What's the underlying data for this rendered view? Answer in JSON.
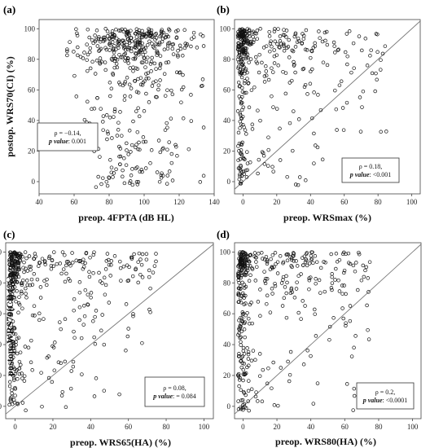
{
  "chart_data": [
    {
      "type": "scatter",
      "panel": "(a)",
      "xlabel": "preop. 4FPTA (dB HL)",
      "ylabel": "postop. WRS70(CI) (%)",
      "xlim": [
        40,
        140
      ],
      "ylim": [
        -8,
        106
      ],
      "xticks": [
        "40",
        "60",
        "80",
        "100",
        "120",
        "140"
      ],
      "yticks": [
        "0",
        "20",
        "40",
        "60",
        "80",
        "100"
      ],
      "identity_line": false,
      "stat_rho": "ρ = −0.14,",
      "stat_p_label": "p value",
      "stat_p_value": ": 0.001",
      "legend_position": "middle-left",
      "n_points": 480,
      "points": []
    },
    {
      "type": "scatter",
      "panel": "(b)",
      "xlabel": "preop. WRSmax (%)",
      "ylabel": "",
      "xlim": [
        -5,
        105
      ],
      "ylim": [
        -8,
        106
      ],
      "xticks": [
        "0",
        "20",
        "40",
        "60",
        "80",
        "100"
      ],
      "yticks": [
        "0",
        "20",
        "40",
        "60",
        "80",
        "100"
      ],
      "identity_line": true,
      "stat_rho": "ρ = 0.18,",
      "stat_p_label": "p value",
      "stat_p_value": ": <0.001",
      "legend_position": "bottom-right",
      "n_points": 420,
      "points": []
    },
    {
      "type": "scatter",
      "panel": "(c)",
      "xlabel": "preop. WRS65(HA) (%)",
      "ylabel": "postop. WRS70(CI) (%)",
      "xlim": [
        -5,
        105
      ],
      "ylim": [
        -8,
        106
      ],
      "xticks": [
        "0",
        "20",
        "40",
        "60",
        "80",
        "100"
      ],
      "yticks": [
        "0",
        "20",
        "40",
        "60",
        "80",
        "100"
      ],
      "identity_line": true,
      "stat_rho": "ρ = 0.08,",
      "stat_p_label": "p value",
      "stat_p_value": ": = 0.084",
      "legend_position": "bottom-right",
      "n_points": 430,
      "points": []
    },
    {
      "type": "scatter",
      "panel": "(d)",
      "xlabel": "preop. WRS80(HA) (%)",
      "ylabel": "",
      "xlim": [
        -5,
        105
      ],
      "ylim": [
        -8,
        106
      ],
      "xticks": [
        "0",
        "20",
        "40",
        "60",
        "80",
        "100"
      ],
      "yticks": [
        "0",
        "20",
        "40",
        "60",
        "80",
        "100"
      ],
      "identity_line": true,
      "stat_rho": "ρ = 0.2,",
      "stat_p_label": "p value",
      "stat_p_value": ": <0.0001",
      "legend_position": "bottom-right",
      "n_points": 420,
      "points": []
    }
  ]
}
